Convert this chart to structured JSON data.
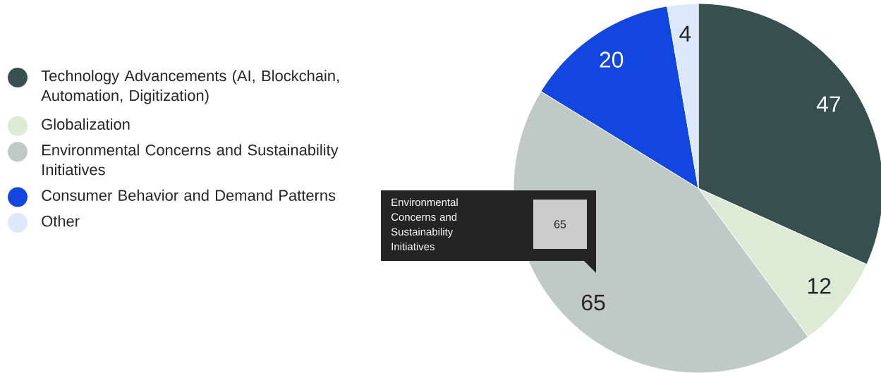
{
  "chart_data": {
    "type": "pie",
    "categories": [
      "Technology Advancements (AI, Blockchain, Automation, Digitization)",
      "Globalization",
      "Environmental Concerns and Sustainability Initiatives",
      "Consumer Behavior and Demand Patterns",
      "Other"
    ],
    "values": [
      47,
      12,
      65,
      20,
      4
    ],
    "colors": [
      "#37504f",
      "#dcebd6",
      "#bfc9c6",
      "#1147e0",
      "#dde8fb"
    ],
    "data_labels": true,
    "legend": "left",
    "annotations": [
      "Environmental Concerns and Sustainability Initiatives",
      "65"
    ]
  }
}
